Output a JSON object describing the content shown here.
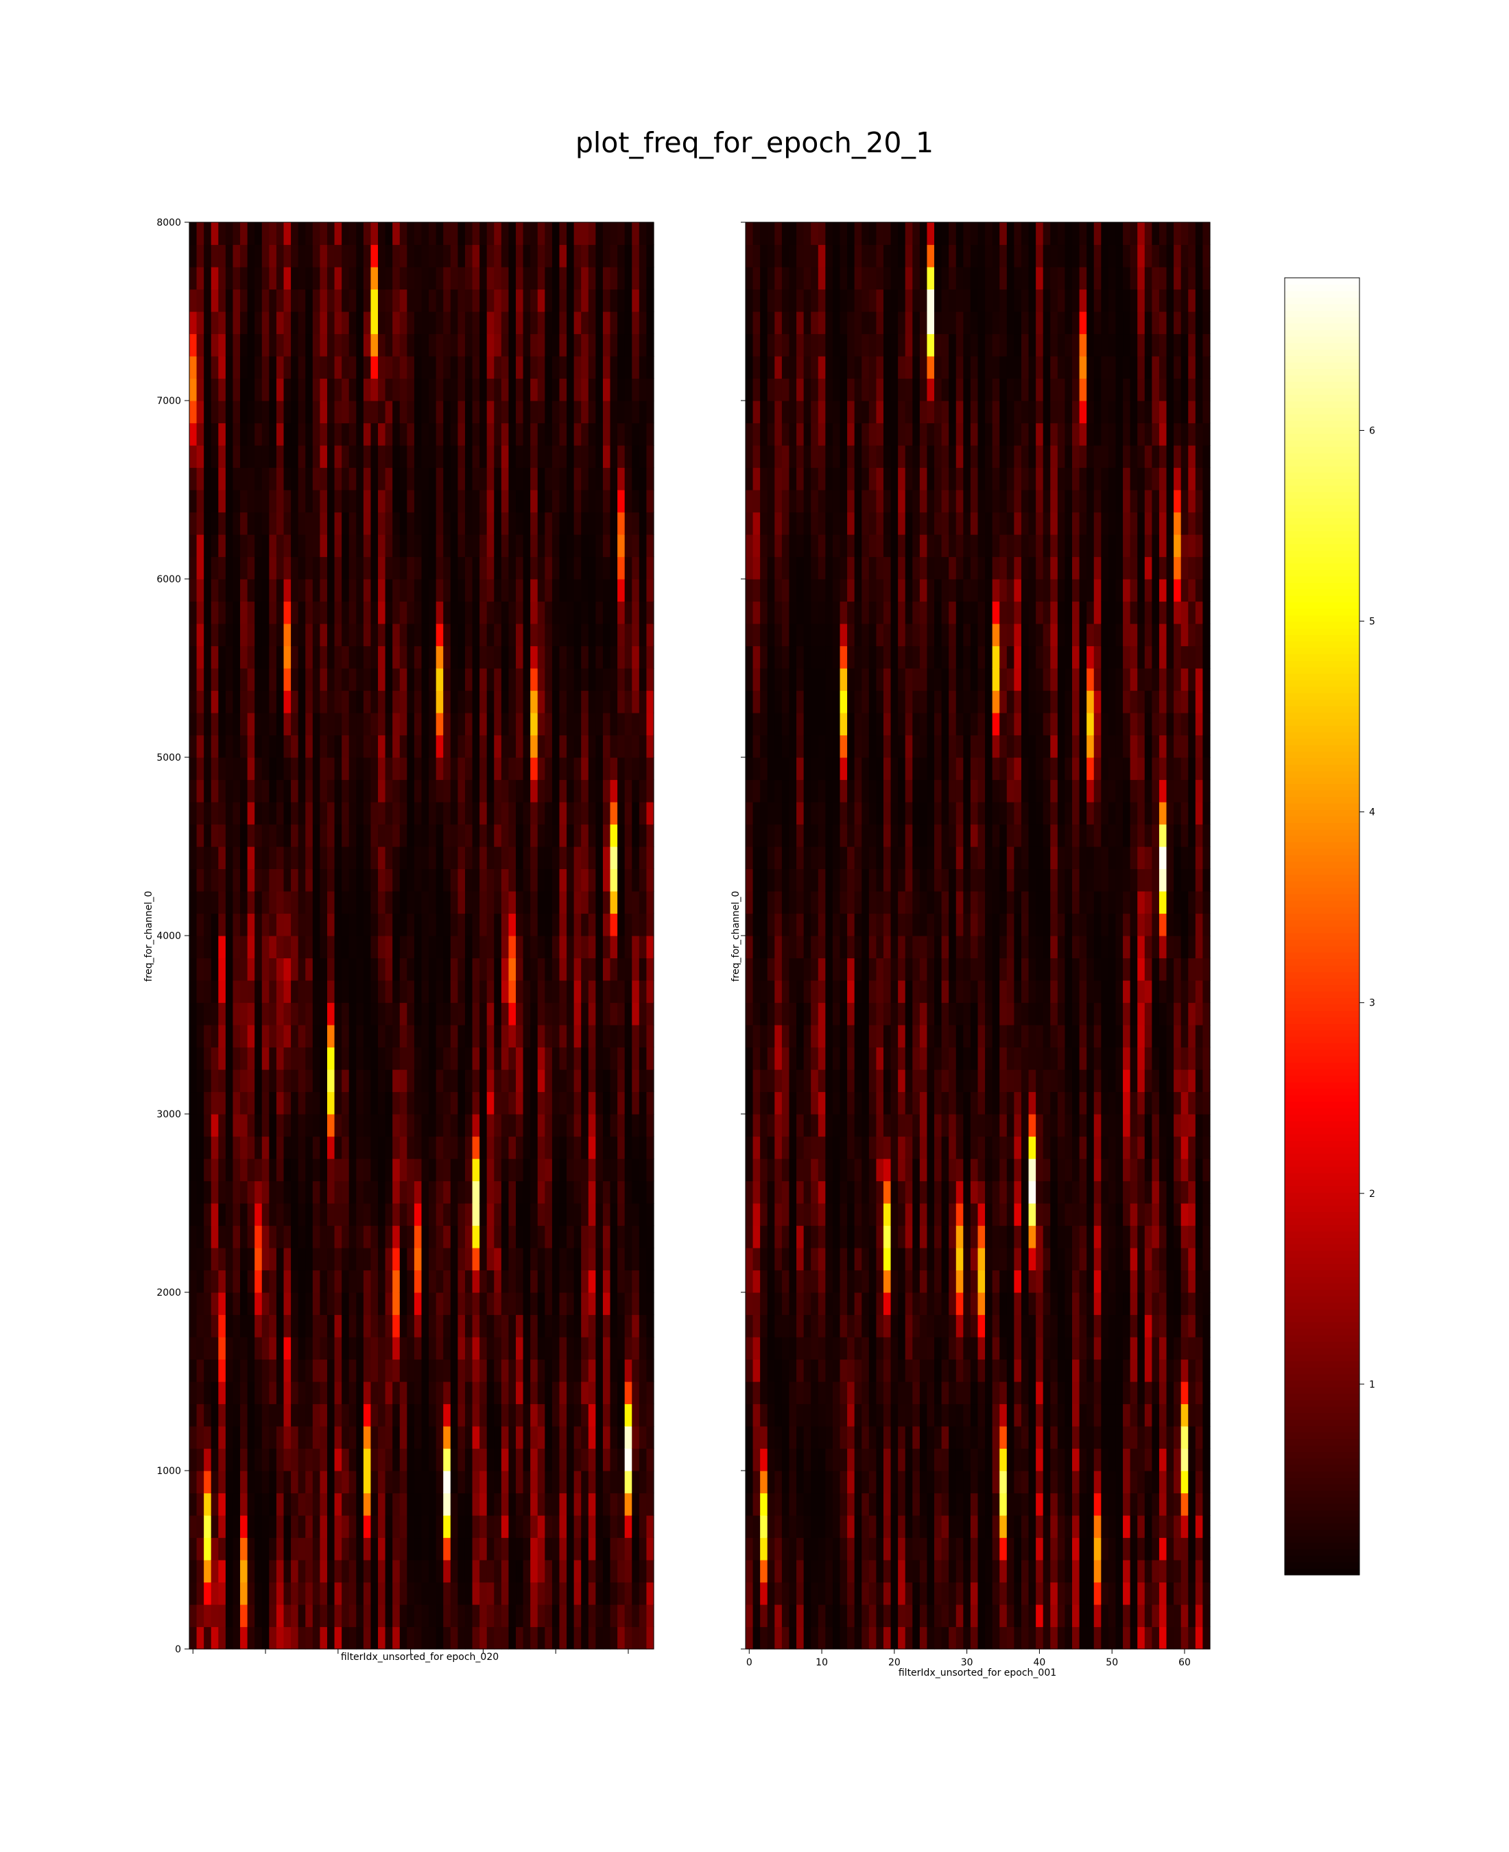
{
  "chart_data": {
    "title": "plot_freq_for_epoch_20_1",
    "type": "heatmap",
    "colormap": "hot",
    "panels": [
      {
        "name": "epoch_020",
        "xlabel": "filterIdx_unsorted_for epoch_020",
        "ylabel": "freq_for_channel_0",
        "xlim": [
          0,
          63
        ],
        "ylim": [
          0,
          8000
        ],
        "x_ticks": [
          0,
          10,
          20,
          30,
          40,
          50,
          60
        ],
        "x_tick_labels_shown": false,
        "y_ticks": [
          0,
          1000,
          2000,
          3000,
          4000,
          5000,
          6000,
          7000,
          8000
        ],
        "y_tick_labels": [
          "0",
          "1000",
          "2000",
          "3000",
          "4000",
          "5000",
          "6000",
          "7000",
          "8000"
        ],
        "y_tick_labels_shown": true,
        "n_filters": 64,
        "seed": 20,
        "hotspots": [
          {
            "x": 0,
            "y": 7100,
            "value": 3.8
          },
          {
            "x": 2,
            "y": 650,
            "value": 5.5
          },
          {
            "x": 4,
            "y": 1700,
            "value": 3.0
          },
          {
            "x": 7,
            "y": 400,
            "value": 4.2
          },
          {
            "x": 9,
            "y": 2200,
            "value": 3.2
          },
          {
            "x": 13,
            "y": 5600,
            "value": 3.8
          },
          {
            "x": 19,
            "y": 3200,
            "value": 5.5
          },
          {
            "x": 24,
            "y": 1000,
            "value": 4.8
          },
          {
            "x": 25,
            "y": 7500,
            "value": 5.0
          },
          {
            "x": 28,
            "y": 2000,
            "value": 3.5
          },
          {
            "x": 31,
            "y": 2200,
            "value": 3.5
          },
          {
            "x": 34,
            "y": 5400,
            "value": 4.6
          },
          {
            "x": 35,
            "y": 900,
            "value": 6.8
          },
          {
            "x": 39,
            "y": 2500,
            "value": 6.2
          },
          {
            "x": 44,
            "y": 3800,
            "value": 3.5
          },
          {
            "x": 47,
            "y": 5200,
            "value": 4.5
          },
          {
            "x": 58,
            "y": 4400,
            "value": 6.0
          },
          {
            "x": 60,
            "y": 1100,
            "value": 6.8
          },
          {
            "x": 59,
            "y": 6200,
            "value": 3.6
          }
        ]
      },
      {
        "name": "epoch_001",
        "xlabel": "filterIdx_unsorted_for epoch_001",
        "ylabel": "freq_for_channel_0",
        "xlim": [
          0,
          63
        ],
        "ylim": [
          0,
          8000
        ],
        "x_ticks": [
          0,
          10,
          20,
          30,
          40,
          50,
          60
        ],
        "x_tick_labels": [
          "0",
          "10",
          "20",
          "30",
          "40",
          "50",
          "60"
        ],
        "x_tick_labels_shown": true,
        "y_ticks": [
          0,
          1000,
          2000,
          3000,
          4000,
          5000,
          6000,
          7000,
          8000
        ],
        "y_tick_labels_shown": false,
        "n_filters": 64,
        "seed": 1,
        "hotspots": [
          {
            "x": 2,
            "y": 700,
            "value": 5.5
          },
          {
            "x": 13,
            "y": 5300,
            "value": 5.0
          },
          {
            "x": 19,
            "y": 2300,
            "value": 5.5
          },
          {
            "x": 25,
            "y": 7500,
            "value": 6.8
          },
          {
            "x": 29,
            "y": 2200,
            "value": 4.5
          },
          {
            "x": 32,
            "y": 2100,
            "value": 4.5
          },
          {
            "x": 34,
            "y": 5500,
            "value": 4.8
          },
          {
            "x": 35,
            "y": 900,
            "value": 5.8
          },
          {
            "x": 39,
            "y": 2600,
            "value": 6.8
          },
          {
            "x": 46,
            "y": 7200,
            "value": 3.8
          },
          {
            "x": 47,
            "y": 5200,
            "value": 4.6
          },
          {
            "x": 48,
            "y": 550,
            "value": 4.2
          },
          {
            "x": 57,
            "y": 4400,
            "value": 6.8
          },
          {
            "x": 59,
            "y": 6200,
            "value": 4.0
          },
          {
            "x": 60,
            "y": 1100,
            "value": 6.0
          }
        ]
      }
    ],
    "colorbar": {
      "vmin": 0,
      "vmax": 6.8,
      "ticks": [
        1,
        2,
        3,
        4,
        5,
        6
      ],
      "tick_labels": [
        "1",
        "2",
        "3",
        "4",
        "5",
        "6"
      ]
    }
  }
}
